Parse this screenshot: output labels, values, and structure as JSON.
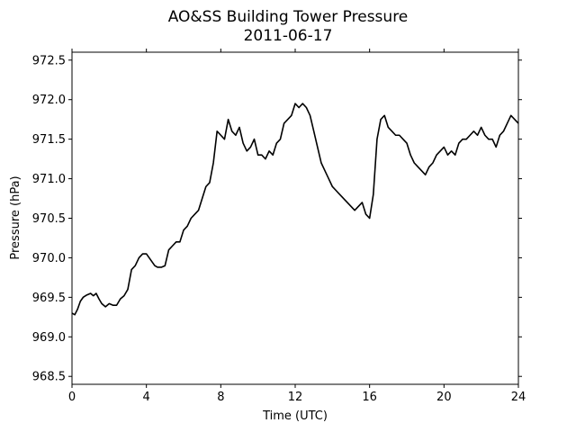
{
  "chart_data": {
    "type": "line",
    "title": "AO&SS Building Tower Pressure",
    "subtitle": "2011-06-17",
    "xlabel": "Time (UTC)",
    "ylabel": "Pressure (hPa)",
    "xlim": [
      0,
      24
    ],
    "ylim": [
      968.4,
      972.6
    ],
    "xticks": [
      0,
      4,
      8,
      12,
      16,
      20,
      24
    ],
    "xtick_labels": [
      "0",
      "4",
      "8",
      "12",
      "16",
      "20",
      "24"
    ],
    "yticks": [
      968.5,
      969.0,
      969.5,
      970.0,
      970.5,
      971.0,
      971.5,
      972.0,
      972.5
    ],
    "ytick_labels": [
      "968.5",
      "969.0",
      "969.5",
      "970.0",
      "970.5",
      "971.0",
      "971.5",
      "972.0",
      "972.5"
    ],
    "grid": false,
    "line_color": "#000000",
    "series": [
      {
        "x": [
          0.0,
          0.15,
          0.3,
          0.45,
          0.6,
          0.8,
          1.0,
          1.15,
          1.3,
          1.45,
          1.6,
          1.8,
          2.0,
          2.2,
          2.4,
          2.6,
          2.8,
          3.0,
          3.2,
          3.4,
          3.6,
          3.8,
          4.0,
          4.15,
          4.3,
          4.45,
          4.6,
          4.8,
          5.0,
          5.2,
          5.4,
          5.6,
          5.8,
          6.0,
          6.2,
          6.4,
          6.6,
          6.8,
          7.0,
          7.2,
          7.4,
          7.6,
          7.8,
          8.0,
          8.2,
          8.4,
          8.6,
          8.8,
          9.0,
          9.2,
          9.4,
          9.6,
          9.8,
          10.0,
          10.2,
          10.4,
          10.6,
          10.8,
          11.0,
          11.2,
          11.4,
          11.6,
          11.8,
          12.0,
          12.2,
          12.4,
          12.6,
          12.8,
          13.0,
          13.2,
          13.4,
          13.6,
          13.8,
          14.0,
          14.2,
          14.4,
          14.6,
          14.8,
          15.0,
          15.2,
          15.4,
          15.6,
          15.8,
          16.0,
          16.2,
          16.4,
          16.6,
          16.8,
          17.0,
          17.2,
          17.4,
          17.6,
          17.8,
          18.0,
          18.2,
          18.4,
          18.6,
          18.8,
          19.0,
          19.2,
          19.4,
          19.6,
          19.8,
          20.0,
          20.2,
          20.4,
          20.6,
          20.8,
          21.0,
          21.2,
          21.4,
          21.6,
          21.8,
          22.0,
          22.2,
          22.4,
          22.6,
          22.8,
          23.0,
          23.2,
          23.4,
          23.6,
          23.8,
          24.0
        ],
        "values": [
          969.3,
          969.28,
          969.35,
          969.45,
          969.5,
          969.53,
          969.55,
          969.52,
          969.55,
          969.48,
          969.42,
          969.38,
          969.42,
          969.4,
          969.4,
          969.48,
          969.52,
          969.6,
          969.85,
          969.9,
          970.0,
          970.05,
          970.05,
          970.0,
          969.95,
          969.9,
          969.88,
          969.88,
          969.9,
          970.1,
          970.15,
          970.2,
          970.2,
          970.35,
          970.4,
          970.5,
          970.55,
          970.6,
          970.75,
          970.9,
          970.95,
          971.2,
          971.6,
          971.55,
          971.5,
          971.75,
          971.6,
          971.55,
          971.65,
          971.45,
          971.35,
          971.4,
          971.5,
          971.3,
          971.3,
          971.25,
          971.35,
          971.3,
          971.45,
          971.5,
          971.7,
          971.75,
          971.8,
          971.95,
          971.9,
          971.95,
          971.9,
          971.8,
          971.6,
          971.4,
          971.2,
          971.1,
          971.0,
          970.9,
          970.85,
          970.8,
          970.75,
          970.7,
          970.65,
          970.6,
          970.65,
          970.7,
          970.55,
          970.5,
          970.8,
          971.5,
          971.75,
          971.8,
          971.65,
          971.6,
          971.55,
          971.55,
          971.5,
          971.45,
          971.3,
          971.2,
          971.15,
          971.1,
          971.05,
          971.15,
          971.2,
          971.3,
          971.35,
          971.4,
          971.3,
          971.35,
          971.3,
          971.45,
          971.5,
          971.5,
          971.55,
          971.6,
          971.55,
          971.65,
          971.55,
          971.5,
          971.5,
          971.4,
          971.55,
          971.6,
          971.7,
          971.8,
          971.75,
          971.7
        ]
      }
    ]
  }
}
